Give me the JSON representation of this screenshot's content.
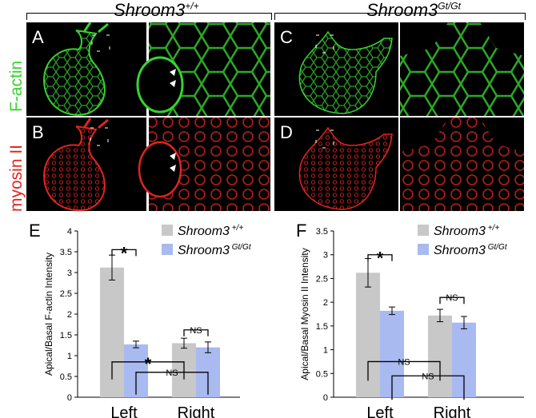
{
  "headers": {
    "left_gene": "Shroom3",
    "left_sup": "+/+",
    "right_gene": "Shroom3",
    "right_sup": "Gt/Gt"
  },
  "row_labels": {
    "top": "F-actin",
    "bottom": "myosin II"
  },
  "panel_letters": [
    "A",
    "B",
    "C",
    "D"
  ],
  "colors": {
    "factin": "#36d42e",
    "myosin": "#e2241f",
    "wildtype_bar": "#c8c8c8",
    "mutant_bar": "#a8baf0"
  },
  "chart_data": [
    {
      "panel": "E",
      "type": "bar",
      "categories": [
        "Left",
        "Right"
      ],
      "ylabel": "Apical/Basal F-actin Intensity",
      "ylim": [
        0,
        4
      ],
      "yticks": [
        "0",
        "0.5",
        "1",
        "1.5",
        "2",
        "2.5",
        "3",
        "3.5",
        "4"
      ],
      "series": [
        {
          "name": "Shroom3",
          "sup": "+/+",
          "values": [
            3.12,
            1.3
          ],
          "errors": [
            0.3,
            0.12
          ]
        },
        {
          "name": "Shroom3",
          "sup": "Gt/Gt",
          "values": [
            1.27,
            1.2
          ],
          "errors": [
            0.08,
            0.13
          ]
        }
      ],
      "annotations": [
        "*",
        "NS",
        "*",
        "NS"
      ]
    },
    {
      "panel": "F",
      "type": "bar",
      "categories": [
        "Left",
        "Right"
      ],
      "ylabel": "Apical/Basal Myosin II Intensity",
      "ylim": [
        0,
        3.5
      ],
      "yticks": [
        "0",
        "0.5",
        "1",
        "1.5",
        "2",
        "2.5",
        "3",
        "3.5"
      ],
      "series": [
        {
          "name": "Shroom3",
          "sup": "+/+",
          "values": [
            2.62,
            1.72
          ],
          "errors": [
            0.3,
            0.13
          ]
        },
        {
          "name": "Shroom3",
          "sup": "Gt/Gt",
          "values": [
            1.82,
            1.57
          ],
          "errors": [
            0.08,
            0.13
          ]
        }
      ],
      "annotations": [
        "*",
        "NS",
        "NS",
        "NS"
      ]
    }
  ]
}
